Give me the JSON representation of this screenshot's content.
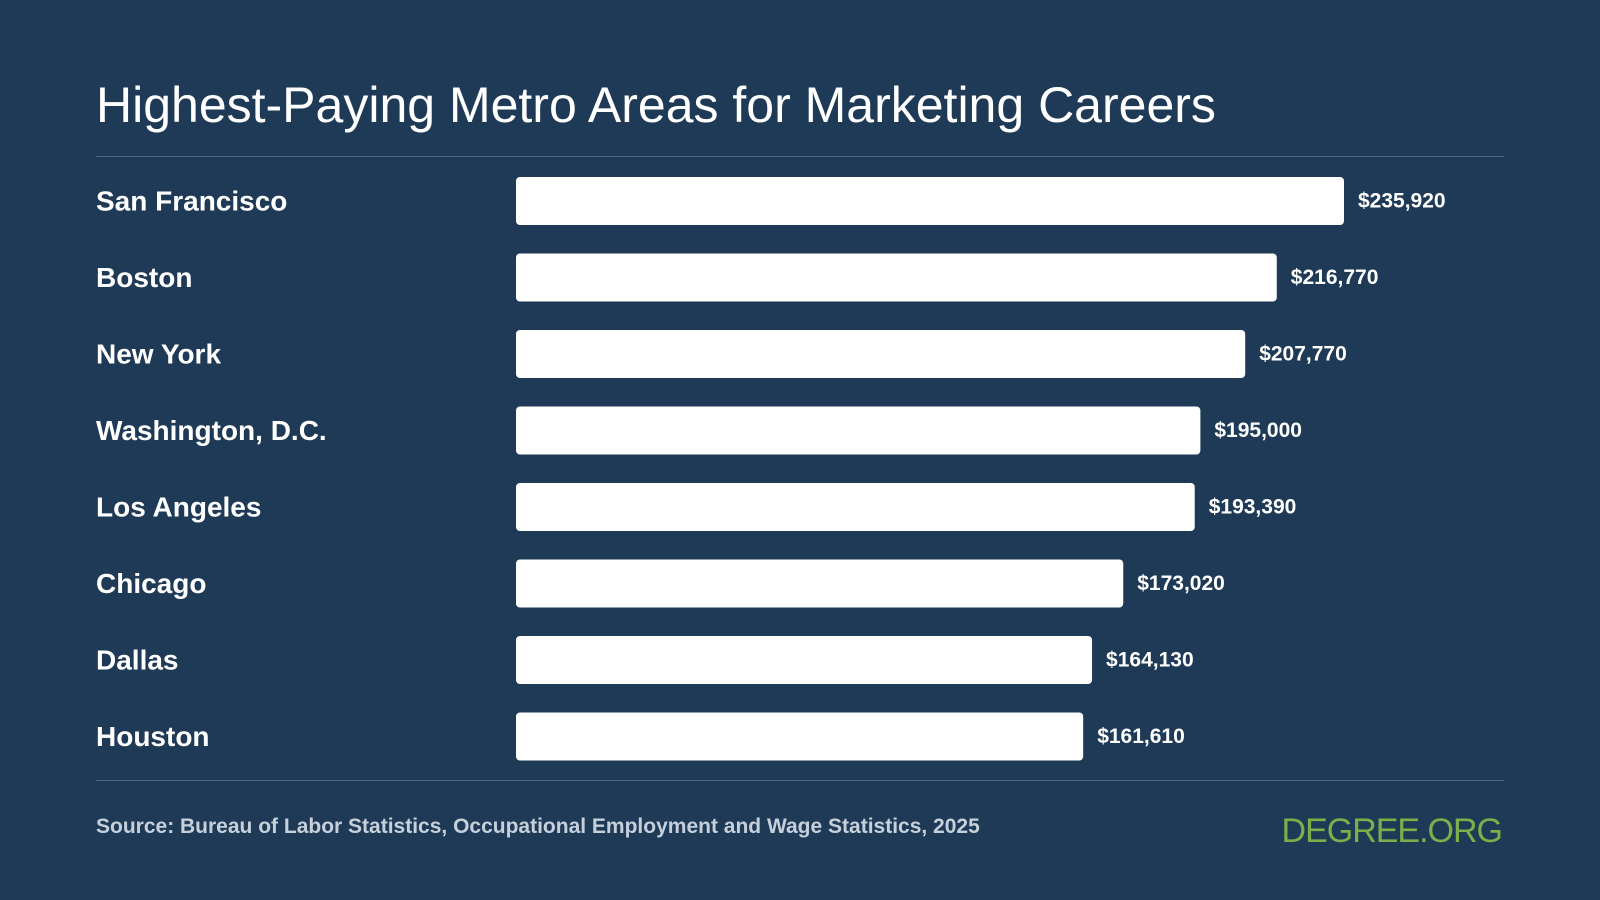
{
  "footer": {
    "source": "Source: Bureau of Labor Statistics, Occupational Employment and Wage Statistics, 2025",
    "brand": "DEGREE.ORG"
  },
  "colors": {
    "background": "#1f3a56",
    "bar": "#ffffff",
    "text": "#ffffff",
    "source_text": "#c6d0db",
    "brand": "#7ab04a"
  },
  "chart_data": {
    "type": "bar",
    "orientation": "horizontal",
    "title": "Highest-Paying Metro Areas for Marketing Careers",
    "categories": [
      "San Francisco",
      "Boston",
      "New York",
      "Washington, D.C.",
      "Los Angeles",
      "Chicago",
      "Dallas",
      "Houston"
    ],
    "values": [
      235920,
      216770,
      207770,
      195000,
      193390,
      173020,
      164130,
      161610
    ],
    "value_labels": [
      "$235,920",
      "$216,770",
      "$207,770",
      "$195,000",
      "$193,390",
      "$173,020",
      "$164,130",
      "$161,610"
    ],
    "xlim": [
      0,
      235920
    ],
    "grid": false,
    "legend": "none"
  }
}
